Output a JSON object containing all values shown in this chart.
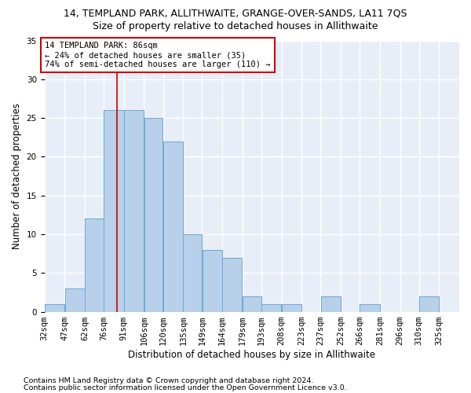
{
  "title1": "14, TEMPLAND PARK, ALLITHWAITE, GRANGE-OVER-SANDS, LA11 7QS",
  "title2": "Size of property relative to detached houses in Allithwaite",
  "xlabel": "Distribution of detached houses by size in Allithwaite",
  "ylabel": "Number of detached properties",
  "footnote1": "Contains HM Land Registry data © Crown copyright and database right 2024.",
  "footnote2": "Contains public sector information licensed under the Open Government Licence v3.0.",
  "bin_labels": [
    "32sqm",
    "47sqm",
    "62sqm",
    "76sqm",
    "91sqm",
    "106sqm",
    "120sqm",
    "135sqm",
    "149sqm",
    "164sqm",
    "179sqm",
    "193sqm",
    "208sqm",
    "223sqm",
    "237sqm",
    "252sqm",
    "266sqm",
    "281sqm",
    "296sqm",
    "310sqm",
    "325sqm"
  ],
  "bin_lefts": [
    32,
    47,
    62,
    76,
    91,
    106,
    120,
    135,
    149,
    164,
    179,
    193,
    208,
    223,
    237,
    252,
    266,
    281,
    296,
    310,
    325
  ],
  "bar_heights": [
    1,
    3,
    12,
    26,
    26,
    25,
    22,
    10,
    8,
    7,
    2,
    1,
    1,
    0,
    2,
    0,
    1,
    0,
    0,
    2,
    0
  ],
  "bar_color": "#b8d0ea",
  "bar_edgecolor": "#6aaad4",
  "vline_x": 86,
  "vline_color": "#cc0000",
  "ylim": [
    0,
    35
  ],
  "yticks": [
    0,
    5,
    10,
    15,
    20,
    25,
    30,
    35
  ],
  "annotation_line1": "14 TEMPLAND PARK: 86sqm",
  "annotation_line2": "← 24% of detached houses are smaller (35)",
  "annotation_line3": "74% of semi-detached houses are larger (110) →",
  "bg_color": "#e8eef8",
  "grid_color": "#ffffff",
  "title1_fontsize": 9,
  "title2_fontsize": 9,
  "axis_label_fontsize": 8.5,
  "tick_fontsize": 7.5,
  "annotation_fontsize": 7.5,
  "footnote_fontsize": 6.8
}
